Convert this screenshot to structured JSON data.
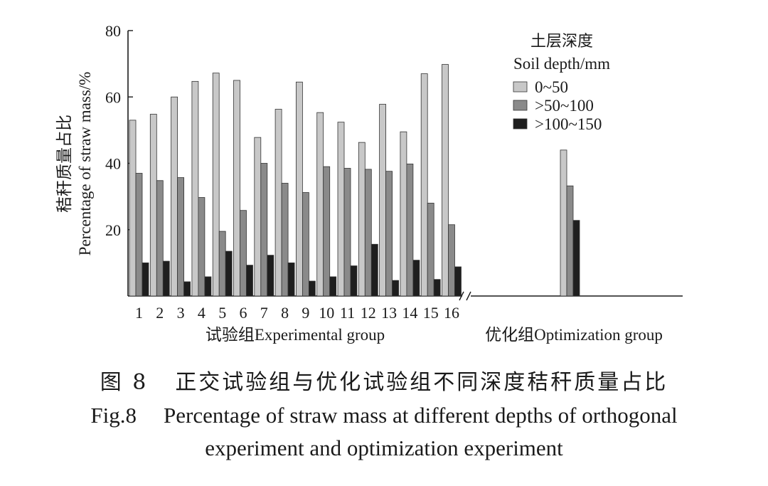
{
  "chart_data": {
    "type": "bar",
    "y_axis_label_cn": "秸秆质量占比",
    "y_axis_label_en": "Percentage of straw mass/%",
    "ylim": [
      0,
      80
    ],
    "y_ticks": [
      "20",
      "40",
      "60",
      "80"
    ],
    "categories": [
      "1",
      "2",
      "3",
      "4",
      "5",
      "6",
      "7",
      "8",
      "9",
      "10",
      "11",
      "12",
      "13",
      "14",
      "15",
      "16"
    ],
    "group_labels": {
      "experimental": "试验组Experimental group",
      "optimization": "优化组Optimization group"
    },
    "legend": {
      "title_cn": "土层深度",
      "title_en": "Soil depth/mm",
      "placement": "top-right"
    },
    "series": [
      {
        "name": "0~50",
        "color": "#c8c8c8",
        "values": [
          53,
          54.8,
          60,
          64.7,
          67.2,
          65,
          47.8,
          56.3,
          64.5,
          55.3,
          52.4,
          46.3,
          57.8,
          49.5,
          67,
          69.8
        ],
        "optimization": 44
      },
      {
        "name": ">50~100",
        "color": "#8a8a8a",
        "values": [
          37,
          34.8,
          35.7,
          29.7,
          19.5,
          25.8,
          40,
          34,
          31.2,
          39,
          38.5,
          38.2,
          37.6,
          39.8,
          28,
          21.5
        ],
        "optimization": 33.2
      },
      {
        "name": ">100~150",
        "color": "#1e1e1e",
        "values": [
          10,
          10.5,
          4.3,
          5.8,
          13.5,
          9.3,
          12.3,
          10,
          4.5,
          5.8,
          9.1,
          15.6,
          4.7,
          10.8,
          5,
          8.8
        ],
        "optimization": 22.8
      }
    ]
  },
  "caption": {
    "fig_cn": "图 8",
    "title_cn": "正交试验组与优化试验组不同深度秸秆质量占比",
    "fig_en": "Fig.8",
    "title_en_line1": "Percentage of straw mass at different depths of orthogonal",
    "title_en_line2": "experiment and optimization experiment"
  }
}
